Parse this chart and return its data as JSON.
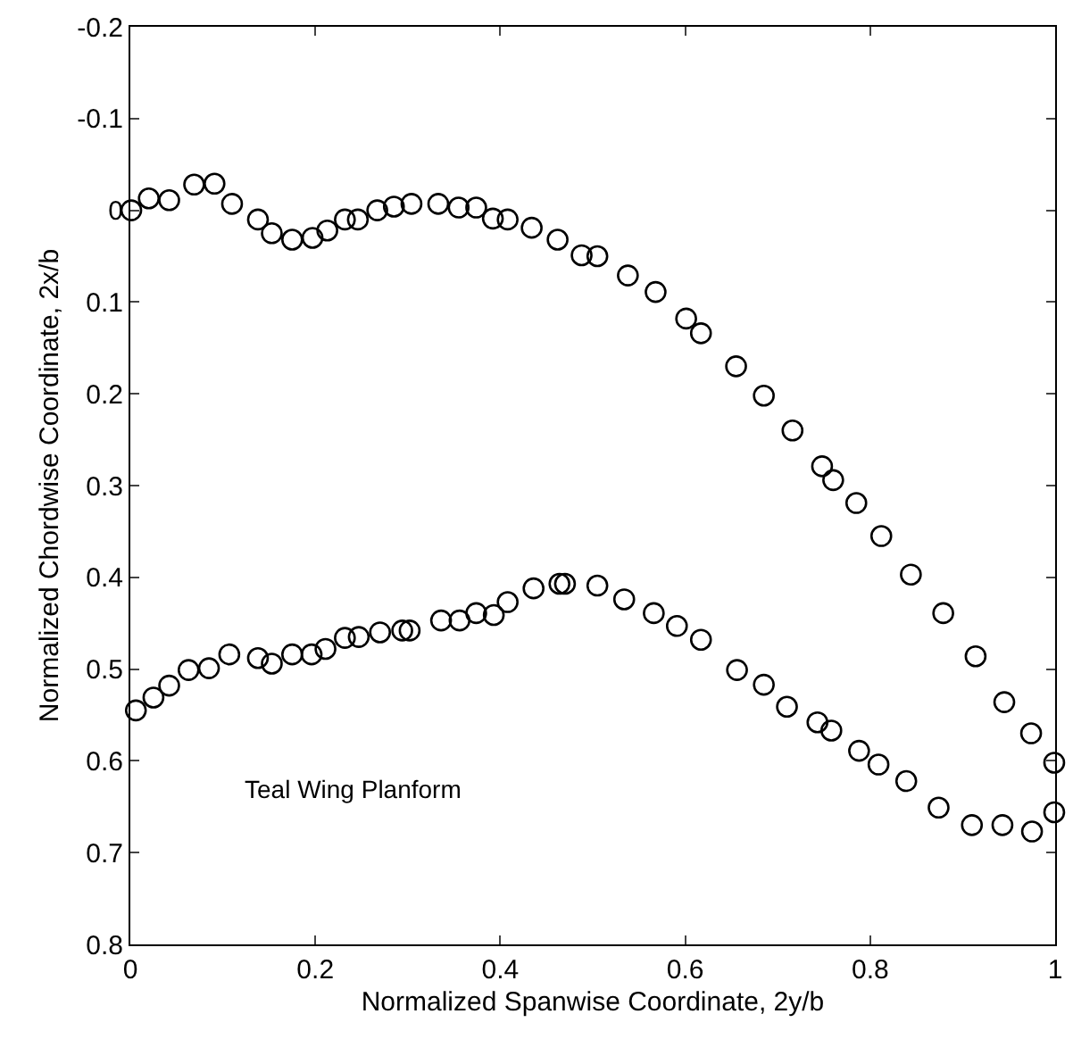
{
  "chart_data": {
    "type": "scatter",
    "xlabel": "Normalized Spanwise Coordinate, 2y/b",
    "ylabel": "Normalized Chordwise Coordinate, 2x/b",
    "annotations": [
      "Teal Wing Planform"
    ],
    "xlim": [
      0,
      1
    ],
    "xticks": [
      0,
      0.2,
      0.4,
      0.6,
      0.8,
      1
    ],
    "ylim": [
      0.8,
      -0.2
    ],
    "yticks": [
      -0.2,
      -0.1,
      0,
      0.1,
      0.2,
      0.3,
      0.4,
      0.5,
      0.6,
      0.7,
      0.8
    ],
    "grid": false,
    "marker": "circle",
    "series": [
      {
        "color": "#000000",
        "x": [
          0.001,
          0.02,
          0.042,
          0.069,
          0.091,
          0.11,
          0.138,
          0.153,
          0.175,
          0.197,
          0.213,
          0.232,
          0.246,
          0.267,
          0.285,
          0.304,
          0.333,
          0.355,
          0.374,
          0.392,
          0.408,
          0.434,
          0.462,
          0.488,
          0.505,
          0.538,
          0.568,
          0.601,
          0.617,
          0.655,
          0.685,
          0.716,
          0.748,
          0.76,
          0.785,
          0.812,
          0.844,
          0.879,
          0.914,
          0.945,
          0.974,
          0.999
        ],
        "values": [
          0.0,
          -0.013,
          -0.011,
          -0.028,
          -0.029,
          -0.007,
          0.01,
          0.025,
          0.032,
          0.03,
          0.022,
          0.01,
          0.01,
          0.0,
          -0.004,
          -0.007,
          -0.007,
          -0.003,
          -0.003,
          0.009,
          0.01,
          0.019,
          0.032,
          0.049,
          0.05,
          0.071,
          0.089,
          0.118,
          0.134,
          0.17,
          0.202,
          0.24,
          0.279,
          0.294,
          0.319,
          0.355,
          0.397,
          0.439,
          0.486,
          0.536,
          0.57,
          0.602
        ]
      },
      {
        "color": "#000000",
        "x": [
          0.006,
          0.025,
          0.042,
          0.063,
          0.085,
          0.107,
          0.138,
          0.153,
          0.175,
          0.196,
          0.211,
          0.232,
          0.247,
          0.27,
          0.294,
          0.302,
          0.336,
          0.356,
          0.374,
          0.393,
          0.408,
          0.436,
          0.464,
          0.47,
          0.505,
          0.534,
          0.566,
          0.591,
          0.617,
          0.656,
          0.685,
          0.71,
          0.743,
          0.758,
          0.788,
          0.809,
          0.839,
          0.874,
          0.91,
          0.943,
          0.975,
          0.999
        ],
        "values": [
          0.545,
          0.531,
          0.518,
          0.501,
          0.499,
          0.484,
          0.488,
          0.494,
          0.484,
          0.484,
          0.478,
          0.466,
          0.465,
          0.46,
          0.458,
          0.458,
          0.447,
          0.447,
          0.439,
          0.441,
          0.427,
          0.412,
          0.407,
          0.407,
          0.409,
          0.424,
          0.439,
          0.453,
          0.468,
          0.501,
          0.517,
          0.541,
          0.558,
          0.567,
          0.589,
          0.604,
          0.622,
          0.651,
          0.67,
          0.67,
          0.677,
          0.656
        ]
      }
    ]
  }
}
